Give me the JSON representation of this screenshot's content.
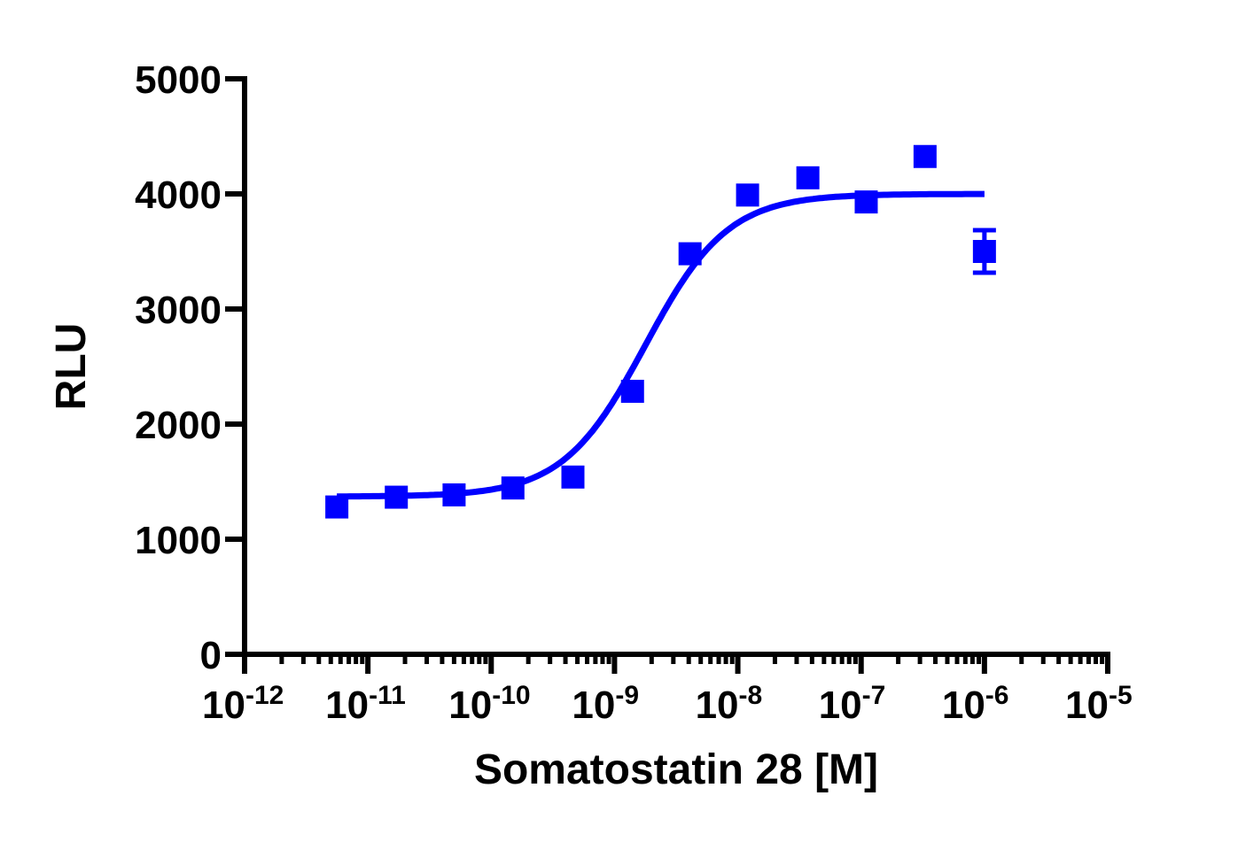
{
  "chart_data": {
    "type": "scatter",
    "xlabel": "Somatostatin 28 [M]",
    "ylabel": "RLU",
    "x_scale": "log10",
    "xlim": [
      1e-12,
      1e-05
    ],
    "ylim": [
      0,
      5000
    ],
    "grid": false,
    "legend": "none",
    "color": "#0000ff",
    "x_tick_labels": [
      {
        "base": "10",
        "exp": "-12"
      },
      {
        "base": "10",
        "exp": "-11"
      },
      {
        "base": "10",
        "exp": "-10"
      },
      {
        "base": "10",
        "exp": "-9"
      },
      {
        "base": "10",
        "exp": "-8"
      },
      {
        "base": "10",
        "exp": "-7"
      },
      {
        "base": "10",
        "exp": "-6"
      },
      {
        "base": "10",
        "exp": "-5"
      }
    ],
    "y_tick_labels": [
      "0",
      "1000",
      "2000",
      "3000",
      "4000",
      "5000"
    ],
    "points": [
      {
        "x": 5.6e-12,
        "y": 1280
      },
      {
        "x": 1.7e-11,
        "y": 1365
      },
      {
        "x": 5e-11,
        "y": 1385
      },
      {
        "x": 1.5e-10,
        "y": 1445
      },
      {
        "x": 4.6e-10,
        "y": 1540
      },
      {
        "x": 1.4e-09,
        "y": 2285
      },
      {
        "x": 4.1e-09,
        "y": 3480
      },
      {
        "x": 1.2e-08,
        "y": 3990
      },
      {
        "x": 3.7e-08,
        "y": 4140
      },
      {
        "x": 1.1e-07,
        "y": 3930
      },
      {
        "x": 3.3e-07,
        "y": 4325
      },
      {
        "x": 1e-06,
        "y": 3500,
        "err": 185
      }
    ],
    "fit": {
      "model": "sigmoidal dose-response",
      "bottom": 1370,
      "top": 4000,
      "logEC50": -8.75,
      "hill": 1.3,
      "x_range": [
        5.6e-12,
        1e-06
      ]
    }
  }
}
